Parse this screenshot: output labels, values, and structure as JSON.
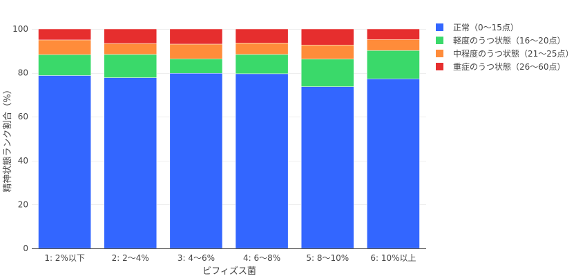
{
  "chart_data": {
    "type": "bar",
    "stacked": true,
    "title": "",
    "xlabel": "ビフィズス菌",
    "ylabel": "精神状態ランク割合（%）",
    "ylim": [
      0,
      100
    ],
    "yticks": [
      0,
      20,
      40,
      60,
      80,
      100
    ],
    "grid": true,
    "legend_position": "right",
    "categories": [
      "1: 2%以下",
      "2: 2〜4%",
      "3: 4〜6%",
      "4: 6〜8%",
      "5: 8〜10%",
      "6: 10%以上"
    ],
    "series": [
      {
        "name": "正常（0〜15点）",
        "color": "#3366ff",
        "values": [
          78.8,
          77.8,
          79.8,
          79.6,
          73.7,
          77.3
        ]
      },
      {
        "name": "軽度のうつ状態（16〜20点）",
        "color": "#3ad96a",
        "values": [
          9.5,
          10.6,
          6.6,
          8.8,
          12.6,
          12.9
        ]
      },
      {
        "name": "中程度のうつ状態（21〜25点）",
        "color": "#ff8c3a",
        "values": [
          6.7,
          5.0,
          6.7,
          5.2,
          6.4,
          5.0
        ]
      },
      {
        "name": "重症のうつ状態（26〜60点）",
        "color": "#e62e2e",
        "values": [
          5.0,
          6.6,
          6.9,
          6.4,
          7.3,
          4.8
        ]
      }
    ]
  }
}
